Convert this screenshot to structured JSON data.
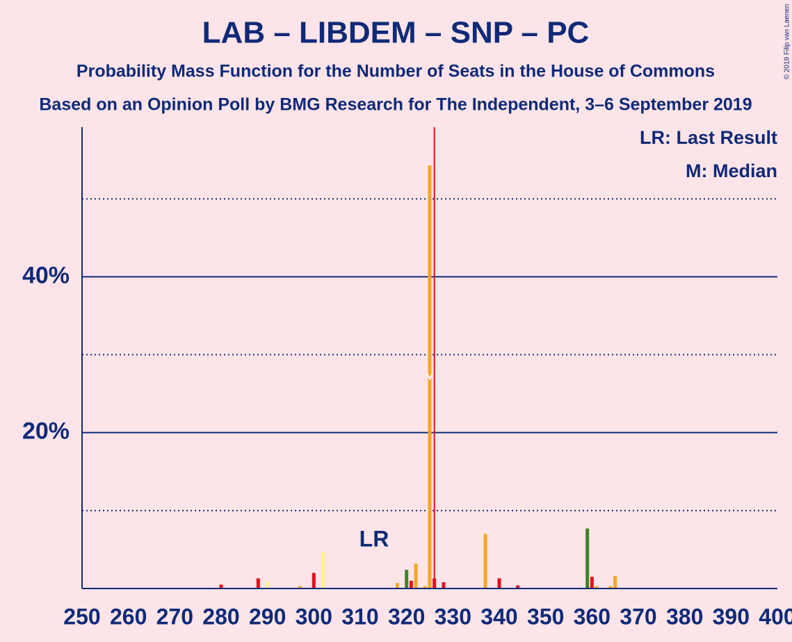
{
  "chart_data": {
    "type": "bar",
    "title": "LAB – LIBDEM – SNP – PC",
    "subtitle": "Probability Mass Function for the Number of Seats in the House of Commons",
    "subtitle2": "Based on an Opinion Poll by BMG Research for The Independent, 3–6 September 2019",
    "copyright": "© 2019 Filip van Laenen",
    "legend_lr": "LR: Last Result",
    "legend_median": "M: Median",
    "lr_label": "LR",
    "last_result": 313,
    "median": 325,
    "majority_line": 326,
    "x": [
      280,
      288,
      290,
      297,
      300,
      302,
      318,
      320,
      321,
      322,
      324,
      325,
      326,
      328,
      337,
      340,
      344,
      359,
      360,
      361,
      364,
      365
    ],
    "values": [
      0.5,
      1.3,
      0.9,
      0.3,
      2.0,
      4.7,
      0.7,
      2.4,
      1.0,
      3.2,
      0.3,
      54.3,
      1.3,
      0.8,
      7.0,
      1.3,
      0.4,
      7.7,
      1.5,
      0.3,
      0.3,
      1.6
    ],
    "colors": [
      "#e4101e",
      "#e4101e",
      "#fdf38e",
      "#f5a623",
      "#e4101e",
      "#fdf38e",
      "#f5a623",
      "#3f8428",
      "#e4101e",
      "#f5a623",
      "#f5a623",
      "#f5a623",
      "#e4101e",
      "#e4101e",
      "#f5a623",
      "#e4101e",
      "#e4101e",
      "#3f8428",
      "#e4101e",
      "#f5a623",
      "#f5a623",
      "#f5a623"
    ],
    "xlim": [
      250,
      400
    ],
    "xticks": [
      250,
      260,
      270,
      280,
      290,
      300,
      310,
      320,
      330,
      340,
      350,
      360,
      370,
      380,
      390,
      400
    ],
    "ylim": [
      0,
      59.2
    ],
    "yticks": [
      {
        "value": 20,
        "label": "20%"
      },
      {
        "value": 40,
        "label": "40%"
      }
    ],
    "minor_gridlines": [
      10,
      30,
      50
    ]
  }
}
